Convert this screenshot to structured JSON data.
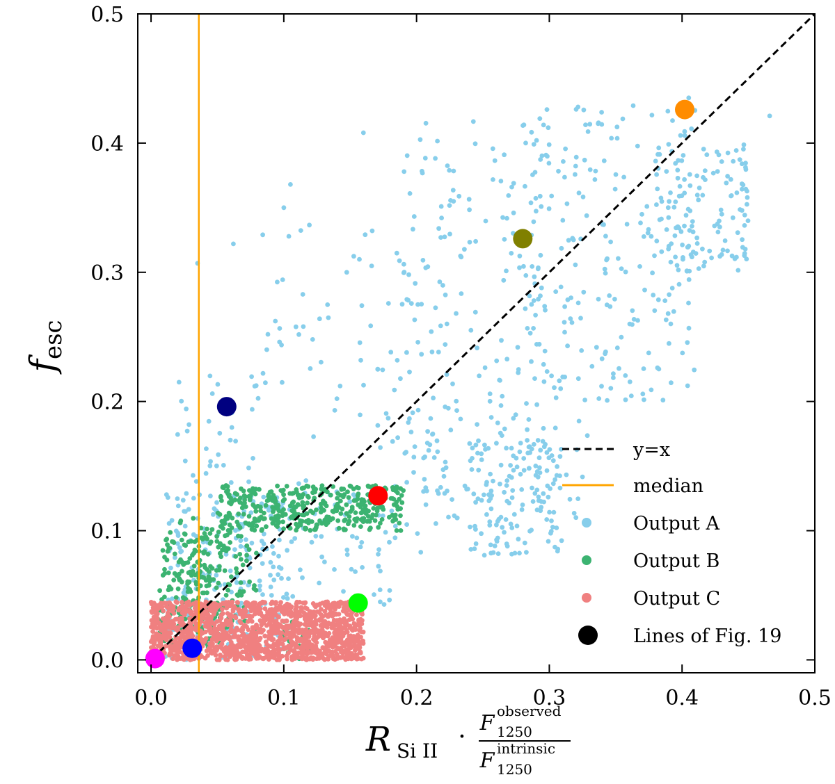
{
  "chart_data": {
    "type": "scatter",
    "title": "",
    "xlabel": {
      "main": "R",
      "sub": "Si II",
      "dot": "·",
      "frac_num_main": "F",
      "frac_num_sup": "observed",
      "frac_num_sub": "1250",
      "frac_den_main": "F",
      "frac_den_sup": "intrinsic",
      "frac_den_sub": "1250"
    },
    "ylabel": {
      "main": "f",
      "sub": "esc"
    },
    "xlim": [
      -0.01,
      0.5
    ],
    "ylim": [
      -0.01,
      0.5
    ],
    "xticks": [
      "0.0",
      "0.1",
      "0.2",
      "0.3",
      "0.4",
      "0.5"
    ],
    "yticks": [
      "0.0",
      "0.1",
      "0.2",
      "0.3",
      "0.4",
      "0.5"
    ],
    "median_x": 0.036,
    "reference_line": {
      "label": "y=x",
      "x": [
        0,
        0.5
      ],
      "y": [
        0,
        0.5
      ]
    },
    "legend": {
      "position": "lower-right",
      "entries": [
        "y=x",
        "median",
        "Output A",
        "Output B",
        "Output C",
        "Lines of Fig. 19"
      ]
    },
    "colors": {
      "output_a": "#87ceeb",
      "output_b": "#3cb371",
      "output_c": "#f08080",
      "median": "#ffa500",
      "reference": "#000000",
      "highlight_legend": "#000000"
    },
    "series": [
      {
        "name": "Output A",
        "color": "#87ceeb",
        "clusters": [
          {
            "x": [
              0.01,
              0.1
            ],
            "y": [
              0.0,
              0.13
            ],
            "n": 220
          },
          {
            "x": [
              0.02,
              0.08
            ],
            "y": [
              0.12,
              0.22
            ],
            "n": 35
          },
          {
            "x": [
              0.06,
              0.18
            ],
            "y": [
              0.04,
              0.14
            ],
            "n": 90
          },
          {
            "x": [
              0.08,
              0.23
            ],
            "y": [
              0.15,
              0.34
            ],
            "n": 70
          },
          {
            "x": [
              0.19,
              0.3
            ],
            "y": [
              0.12,
              0.42
            ],
            "n": 170
          },
          {
            "x": [
              0.28,
              0.41
            ],
            "y": [
              0.2,
              0.43
            ],
            "n": 200
          },
          {
            "x": [
              0.24,
              0.31
            ],
            "y": [
              0.08,
              0.17
            ],
            "n": 120
          },
          {
            "x": [
              0.38,
              0.45
            ],
            "y": [
              0.3,
              0.4
            ],
            "n": 130
          },
          {
            "x": [
              0.17,
              0.33
            ],
            "y": [
              0.08,
              0.2
            ],
            "n": 70
          }
        ],
        "extra_points": [
          {
            "x": 0.466,
            "y": 0.421
          },
          {
            "x": 0.405,
            "y": 0.435
          },
          {
            "x": 0.16,
            "y": 0.408
          },
          {
            "x": 0.105,
            "y": 0.368
          },
          {
            "x": 0.1,
            "y": 0.35
          },
          {
            "x": 0.035,
            "y": 0.307
          },
          {
            "x": 0.195,
            "y": 0.361
          },
          {
            "x": 0.062,
            "y": 0.322
          }
        ]
      },
      {
        "name": "Output B",
        "color": "#3cb371",
        "clusters": [
          {
            "x": [
              0.005,
              0.06
            ],
            "y": [
              0.01,
              0.1
            ],
            "n": 160
          },
          {
            "x": [
              0.02,
              0.08
            ],
            "y": [
              0.02,
              0.11
            ],
            "n": 150
          },
          {
            "x": [
              0.05,
              0.19
            ],
            "y": [
              0.1,
              0.135
            ],
            "n": 400
          },
          {
            "x": [
              0.1,
              0.12
            ],
            "y": [
              0.0,
              0.03
            ],
            "n": 20
          }
        ],
        "extra_points": []
      },
      {
        "name": "Output C",
        "color": "#f08080",
        "clusters": [
          {
            "x": [
              0.0,
              0.16
            ],
            "y": [
              0.0,
              0.045
            ],
            "n": 1500
          }
        ],
        "extra_points": []
      }
    ],
    "highlight_points": {
      "label": "Lines of Fig. 19",
      "points": [
        {
          "x": 0.003,
          "y": 0.001,
          "color": "#ff00ff"
        },
        {
          "x": 0.031,
          "y": 0.009,
          "color": "#0000ff"
        },
        {
          "x": 0.057,
          "y": 0.196,
          "color": "#000080"
        },
        {
          "x": 0.156,
          "y": 0.044,
          "color": "#00ff00"
        },
        {
          "x": 0.171,
          "y": 0.127,
          "color": "#ff0000"
        },
        {
          "x": 0.28,
          "y": 0.326,
          "color": "#808000"
        },
        {
          "x": 0.402,
          "y": 0.426,
          "color": "#ff8c00"
        }
      ]
    }
  }
}
